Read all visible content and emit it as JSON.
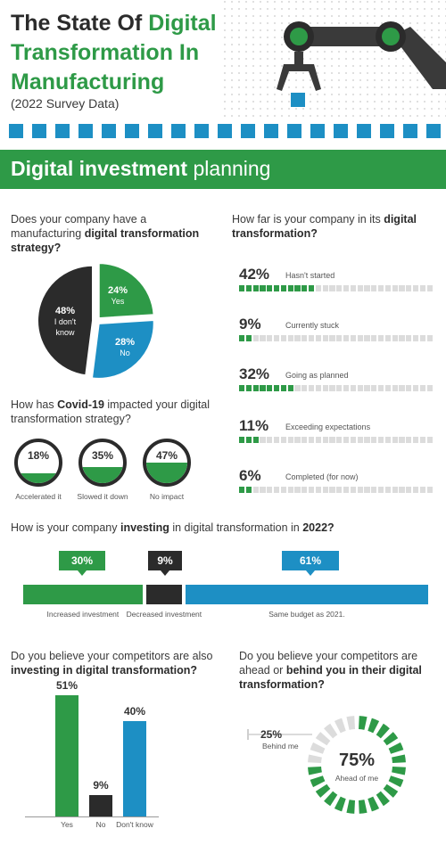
{
  "header": {
    "title_part1": "The State Of ",
    "title_part2": "Digital",
    "title_line2": "Transformation In",
    "title_line3": "Manufacturing",
    "subtitle": "(2022 Survey Data)"
  },
  "section": {
    "bold": "Digital investment",
    "light": " planning"
  },
  "colors": {
    "green": "#2e9a47",
    "blue": "#1d8fc4",
    "dark": "#2b2b2b",
    "grey": "#dcdcdc"
  },
  "q1": {
    "text_a": "Does your company have a manufacturing ",
    "text_b": "digital transformation strategy?"
  },
  "q2": {
    "text_a": "How far is your company in its ",
    "text_b": "digital transformation?"
  },
  "q3": {
    "text_a": "How has ",
    "text_b": "Covid-19",
    "text_c": " impacted your digital transformation strategy?"
  },
  "q4": {
    "text_a": "How is your company ",
    "text_b": "investing",
    "text_c": " in digital transformation in ",
    "text_d": "2022?"
  },
  "q5": {
    "text_a": "Do you believe your competitors are also ",
    "text_b": "investing in digital transformation?"
  },
  "q6": {
    "text_a": "Do you believe your competitors are ahead or ",
    "text_b": "behind you in their digital transformation?"
  },
  "chart_data": [
    {
      "type": "pie",
      "title": "Does your company have a manufacturing digital transformation strategy?",
      "labels": [
        "Yes",
        "No",
        "I don't know"
      ],
      "values": [
        24,
        28,
        48
      ],
      "display": [
        "24%",
        "28%",
        "48%"
      ],
      "colors": [
        "#2e9a47",
        "#1d8fc4",
        "#2b2b2b"
      ]
    },
    {
      "type": "bar",
      "title": "How far is your company in its digital transformation?",
      "categories": [
        "Hasn't started",
        "Currently stuck",
        "Going as planned",
        "Exceeding expectations",
        "Completed (for now)"
      ],
      "values": [
        42,
        9,
        32,
        11,
        6
      ],
      "display": [
        "42%",
        "9%",
        "32%",
        "11%",
        "6%"
      ]
    },
    {
      "type": "bar",
      "title": "How has Covid-19 impacted your digital transformation strategy?",
      "categories": [
        "Accelerated it",
        "Slowed it down",
        "No impact"
      ],
      "values": [
        18,
        35,
        47
      ],
      "display": [
        "18%",
        "35%",
        "47%"
      ]
    },
    {
      "type": "bar",
      "title": "How is your company investing in digital transformation in 2022?",
      "categories": [
        "Increased investment",
        "Decreased investment",
        "Same budget as 2021."
      ],
      "values": [
        30,
        9,
        61
      ],
      "display": [
        "30%",
        "9%",
        "61%"
      ],
      "colors": [
        "#2e9a47",
        "#2b2b2b",
        "#1d8fc4"
      ]
    },
    {
      "type": "bar",
      "title": "Do you believe your competitors are also investing in digital transformation?",
      "categories": [
        "Yes",
        "No",
        "Don't know"
      ],
      "values": [
        51,
        9,
        40
      ],
      "display": [
        "51%",
        "9%",
        "40%"
      ],
      "colors": [
        "#2e9a47",
        "#2b2b2b",
        "#1d8fc4"
      ],
      "ylim": [
        0,
        51
      ]
    },
    {
      "type": "pie",
      "title": "Do you believe your competitors are ahead or behind you in their digital transformation?",
      "labels": [
        "Ahead of me",
        "Behind me"
      ],
      "values": [
        75,
        25
      ],
      "display": [
        "75%",
        "25%"
      ],
      "colors": [
        "#2e9a47",
        "#dcdcdc"
      ]
    }
  ]
}
